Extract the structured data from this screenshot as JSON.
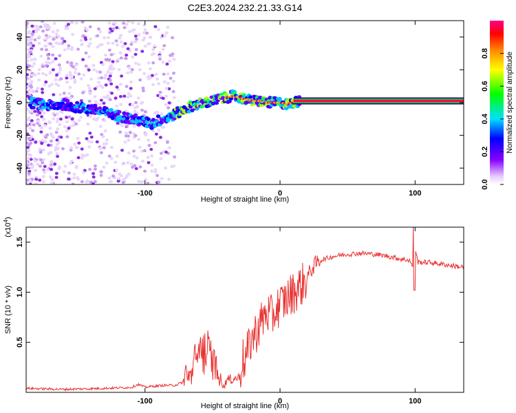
{
  "title": "C2E3.2024.232.21.33.G14",
  "chart_data": [
    {
      "type": "heatmap",
      "xlabel": "Height of straight line (km)",
      "ylabel": "Frequency (Hz)",
      "xlim": [
        -188,
        136
      ],
      "ylim": [
        -50,
        50
      ],
      "xticks": [
        -100,
        0,
        100
      ],
      "xtick_labels": [
        "-100",
        "0",
        "100"
      ],
      "yticks": [
        -40,
        -20,
        0,
        20,
        40
      ],
      "ytick_labels": [
        "-40",
        "-20",
        "0",
        "20",
        "40"
      ],
      "colorbar": {
        "label": "Normalized spectral amplitude",
        "range": [
          0,
          1
        ],
        "ticks": [
          0.0,
          0.2,
          0.4,
          0.6,
          0.8
        ],
        "tick_labels": [
          "0.0",
          "0.2",
          "0.4",
          "0.6",
          "0.8"
        ]
      },
      "ridge": {
        "x": [
          -185,
          -170,
          -160,
          -150,
          -140,
          -130,
          -120,
          -110,
          -100,
          -95,
          -90,
          -85,
          -80,
          -75,
          -70,
          -65,
          -60,
          -55,
          -50,
          -45,
          -40,
          -35,
          -30,
          -25,
          -20,
          -15,
          -10,
          -5,
          0,
          5,
          10,
          15,
          136
        ],
        "y": [
          0,
          -2,
          -1,
          -3,
          -4,
          -6,
          -8,
          -10,
          -12,
          -13,
          -11,
          -10,
          -8,
          -6,
          -4,
          -2,
          -1,
          0,
          1,
          2,
          3,
          4,
          3,
          2,
          1,
          1,
          0,
          0,
          0,
          -1,
          0,
          1,
          1
        ]
      }
    },
    {
      "type": "line",
      "xlabel": "Height of straight line (km)",
      "ylabel": "SNR (10 * v/v)",
      "y_multiplier": "(x10",
      "y_multiplier_exp": "4",
      "xlim": [
        -188,
        136
      ],
      "ylim": [
        0,
        1.65
      ],
      "xticks": [
        -100,
        0,
        100
      ],
      "xtick_labels": [
        "-100",
        "0",
        "100"
      ],
      "yticks": [
        0.5,
        1.0,
        1.5
      ],
      "ytick_labels": [
        "0.5",
        "1.0",
        "1.5"
      ],
      "series": [
        {
          "color": "#e83030",
          "x": [
            -188,
            -160,
            -130,
            -110,
            -105,
            -100,
            -95,
            -85,
            -78,
            -72,
            -70,
            -66,
            -62,
            -58,
            -54,
            -50,
            -46,
            -44,
            -40,
            -36,
            -30,
            -28,
            -26,
            -22,
            -18,
            -14,
            -10,
            -6,
            -2,
            2,
            6,
            10,
            14,
            18,
            22,
            26,
            30,
            40,
            50,
            60,
            70,
            80,
            90,
            96,
            98,
            100,
            102,
            110,
            120,
            130,
            136
          ],
          "y": [
            0.04,
            0.03,
            0.04,
            0.05,
            0.08,
            0.05,
            0.06,
            0.07,
            0.07,
            0.1,
            0.25,
            0.2,
            0.45,
            0.55,
            0.5,
            0.4,
            0.25,
            0.15,
            0.12,
            0.13,
            0.15,
            0.35,
            0.3,
            0.5,
            0.6,
            0.7,
            0.8,
            0.75,
            0.85,
            0.9,
            0.95,
            1.0,
            1.05,
            1.1,
            1.2,
            1.28,
            1.32,
            1.36,
            1.38,
            1.39,
            1.38,
            1.36,
            1.33,
            1.32,
            1.25,
            1.45,
            1.3,
            1.3,
            1.28,
            1.26,
            1.25
          ]
        }
      ]
    }
  ]
}
